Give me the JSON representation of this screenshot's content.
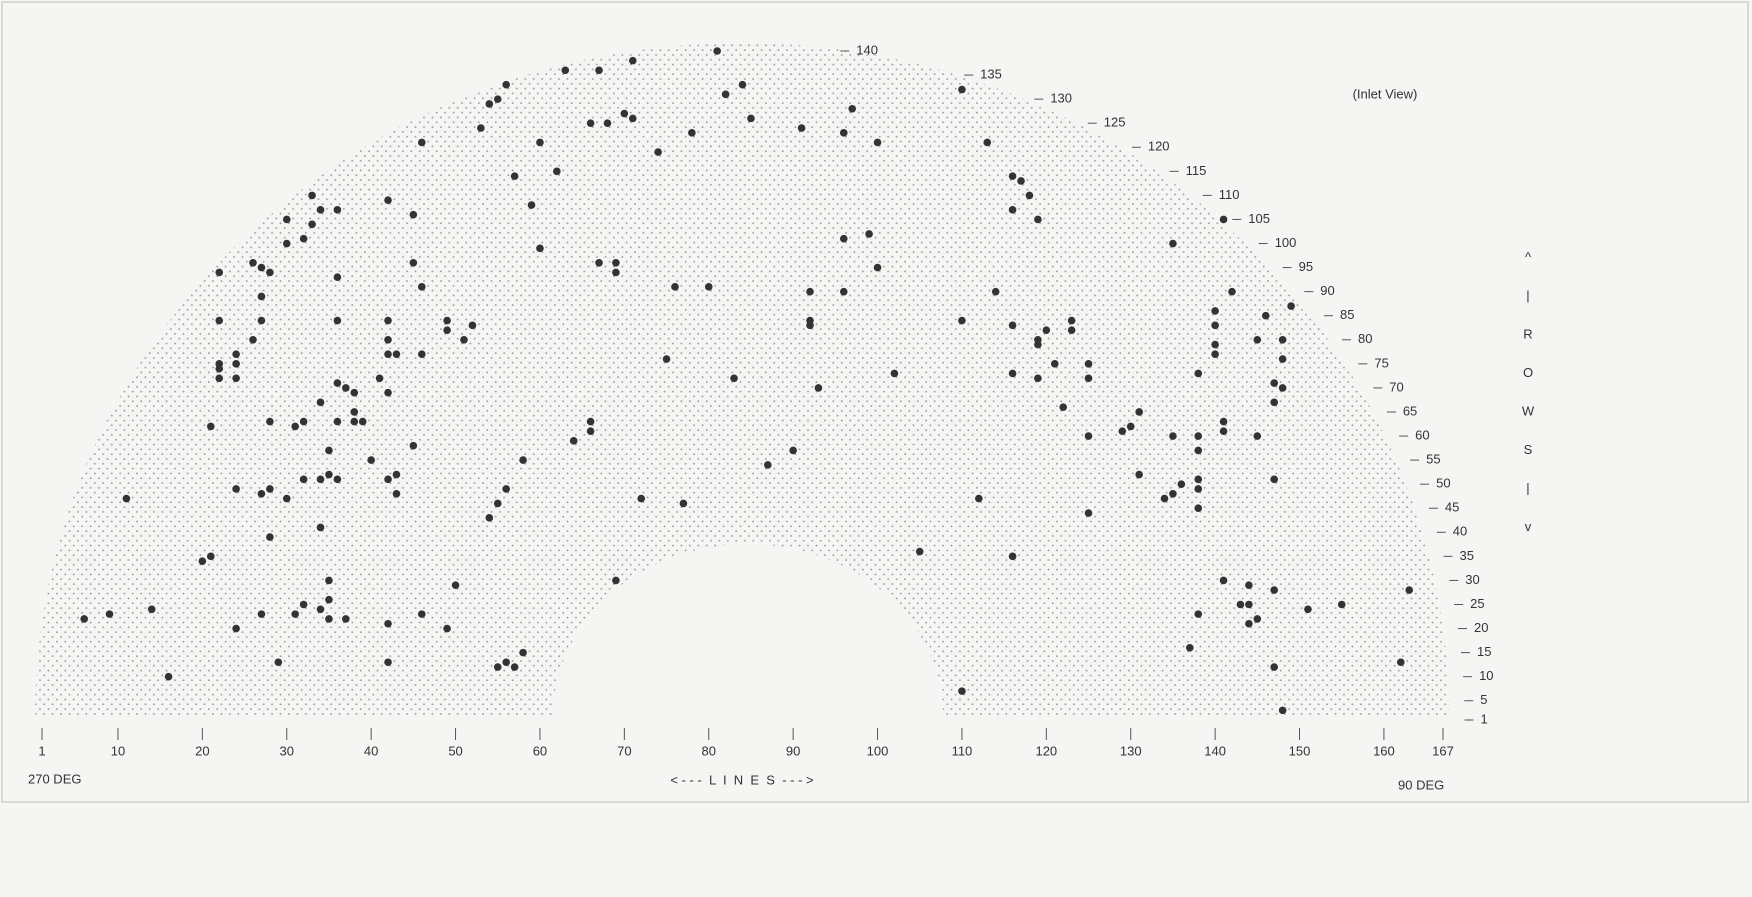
{
  "chart_data": {
    "type": "scatter",
    "annotation": "(Inlet View)",
    "left_label": "270 DEG",
    "right_label": "90 DEG",
    "x_label": "< - - -  L  I  N  E  S  - - - >",
    "y_label": [
      "^",
      "|",
      "R",
      "O",
      "W",
      "S",
      "|",
      "v"
    ],
    "color": "#333333",
    "xlim": [
      1,
      167
    ],
    "xticks": [
      1,
      10,
      20,
      30,
      40,
      50,
      60,
      70,
      80,
      90,
      100,
      110,
      120,
      130,
      140,
      150,
      160,
      167
    ],
    "ylim": [
      1,
      140
    ],
    "yticks": [
      1,
      5,
      10,
      15,
      20,
      25,
      30,
      35,
      40,
      45,
      50,
      55,
      60,
      65,
      70,
      75,
      80,
      85,
      90,
      95,
      100,
      105,
      110,
      115,
      120,
      125,
      130,
      135,
      140
    ],
    "x": [
      6,
      9,
      11,
      14,
      16,
      20,
      21,
      21,
      22,
      22,
      22,
      22,
      22,
      24,
      24,
      24,
      24,
      24,
      26,
      26,
      27,
      27,
      27,
      27,
      27,
      28,
      28,
      28,
      28,
      29,
      30,
      30,
      30,
      31,
      31,
      32,
      32,
      32,
      32,
      33,
      33,
      34,
      34,
      34,
      34,
      34,
      35,
      35,
      35,
      35,
      35,
      36,
      36,
      36,
      36,
      36,
      36,
      37,
      38,
      37,
      38,
      38,
      39,
      40,
      41,
      42,
      42,
      42,
      42,
      42,
      42,
      42,
      42,
      43,
      43,
      43,
      45,
      45,
      45,
      46,
      46,
      46,
      46,
      49,
      49,
      49,
      50,
      51,
      52,
      53,
      54,
      55,
      54,
      55,
      55,
      56,
      56,
      56,
      57,
      57,
      58,
      58,
      59,
      60,
      60,
      62,
      63,
      64,
      66,
      66,
      66,
      67,
      67,
      68,
      69,
      69,
      69,
      70,
      71,
      71,
      72,
      74,
      75,
      76,
      77,
      78,
      80,
      81,
      82,
      83,
      84,
      85,
      87,
      90,
      91,
      92,
      92,
      92,
      93,
      96,
      96,
      96,
      97,
      99,
      100,
      100,
      102,
      105,
      110,
      110,
      110,
      112,
      113,
      114,
      116,
      116,
      116,
      116,
      116,
      117,
      118,
      119,
      119,
      119,
      119,
      120,
      121,
      122,
      123,
      123,
      125,
      125,
      125,
      125,
      129,
      130,
      131,
      131,
      134,
      135,
      135,
      135,
      136,
      137,
      138,
      138,
      138,
      138,
      138,
      138,
      138,
      140,
      140,
      140,
      140,
      141,
      141,
      141,
      141,
      142,
      143,
      144,
      144,
      144,
      145,
      145,
      145,
      146,
      147,
      147,
      147,
      147,
      147,
      148,
      148,
      148,
      148,
      149,
      151,
      155,
      162,
      163
    ],
    "y": [
      22,
      23,
      47,
      24,
      10,
      34,
      35,
      62,
      94,
      84,
      75,
      74,
      72,
      77,
      75,
      72,
      49,
      20,
      96,
      80,
      95,
      89,
      84,
      48,
      23,
      94,
      63,
      49,
      39,
      13,
      105,
      100,
      47,
      62,
      23,
      63,
      101,
      51,
      25,
      104,
      110,
      67,
      51,
      41,
      107,
      24,
      52,
      57,
      30,
      26,
      22,
      71,
      63,
      51,
      107,
      93,
      84,
      70,
      69,
      22,
      65,
      63,
      63,
      55,
      72,
      109,
      84,
      80,
      77,
      69,
      51,
      21,
      13,
      77,
      52,
      48,
      106,
      96,
      58,
      121,
      91,
      77,
      23,
      84,
      82,
      20,
      29,
      80,
      83,
      124,
      129,
      130,
      43,
      46,
      12,
      13,
      133,
      49,
      12,
      114,
      55,
      15,
      108,
      121,
      99,
      115,
      136,
      59,
      63,
      61,
      125,
      136,
      96,
      125,
      96,
      94,
      30,
      127,
      126,
      138,
      47,
      119,
      76,
      91,
      46,
      123,
      91,
      140,
      131,
      72,
      133,
      126,
      54,
      57,
      124,
      90,
      84,
      83,
      70,
      90,
      123,
      101,
      128,
      102,
      121,
      95,
      73,
      36,
      132,
      7,
      84,
      47,
      121,
      90,
      114,
      107,
      83,
      73,
      35,
      113,
      110,
      80,
      79,
      72,
      105,
      82,
      75,
      66,
      84,
      82,
      75,
      72,
      60,
      44,
      61,
      62,
      65,
      52,
      47,
      100,
      48,
      60,
      50,
      16,
      73,
      60,
      57,
      51,
      49,
      45,
      23,
      79,
      77,
      86,
      83,
      105,
      30,
      63,
      61,
      90,
      25,
      29,
      25,
      21,
      22,
      60,
      80,
      85,
      71,
      67,
      51,
      28,
      12,
      70,
      76,
      80,
      3,
      87,
      24,
      25,
      13,
      28
    ]
  }
}
